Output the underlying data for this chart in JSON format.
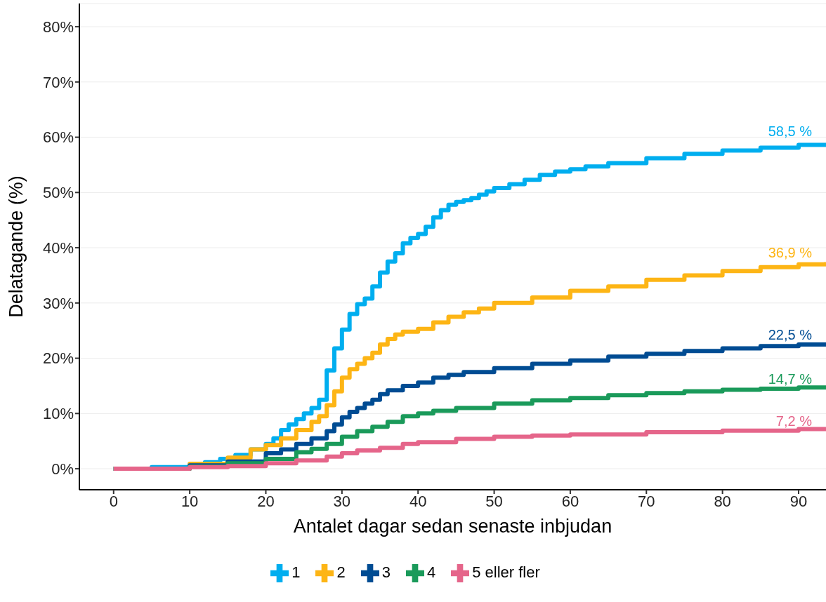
{
  "chart_data": {
    "type": "step",
    "xlabel": "Antalet dagar sedan senaste inbjudan",
    "ylabel": "Delatagande (%)",
    "xlim": [
      -4.5,
      93.6
    ],
    "xticks": [
      0,
      10,
      20,
      30,
      40,
      50,
      60,
      70,
      80,
      90
    ],
    "ylim": [
      -3.8,
      84.2
    ],
    "yticks": [
      {
        "value": 0,
        "label": "0%"
      },
      {
        "value": 10,
        "label": "10%"
      },
      {
        "value": 20,
        "label": "20%"
      },
      {
        "value": 30,
        "label": "30%"
      },
      {
        "value": 40,
        "label": "40%"
      },
      {
        "value": 50,
        "label": "50%"
      },
      {
        "value": 60,
        "label": "60%"
      },
      {
        "value": 70,
        "label": "70%"
      },
      {
        "value": 80,
        "label": "80%"
      }
    ],
    "grid": "y",
    "legend": "bottom",
    "line_style": "solid",
    "series": [
      {
        "name": "1",
        "color": "#00aeef",
        "x": [
          0,
          5,
          10,
          12,
          14,
          16,
          18,
          20,
          21,
          22,
          23,
          24,
          25,
          26,
          27,
          28,
          29,
          30,
          31,
          32,
          33,
          34,
          35,
          36,
          37,
          38,
          39,
          40,
          41,
          42,
          43,
          44,
          45,
          46,
          47,
          48,
          49,
          50,
          52,
          54,
          56,
          58,
          60,
          62,
          65,
          70,
          75,
          80,
          85,
          90,
          93.6
        ],
        "values": [
          0,
          0.3,
          0.8,
          1.2,
          1.8,
          2.5,
          3.5,
          4.5,
          5.5,
          7,
          8,
          9,
          10,
          11,
          12.5,
          17.8,
          21.8,
          25.2,
          28,
          29.8,
          30.8,
          33,
          35.5,
          37.5,
          39,
          40.8,
          41.8,
          42.5,
          43.8,
          45.5,
          46.8,
          47.8,
          48.3,
          48.6,
          49,
          49.6,
          50.2,
          50.8,
          51.5,
          52.3,
          53.2,
          53.8,
          54.2,
          54.7,
          55.3,
          56.2,
          57,
          57.6,
          58.1,
          58.6,
          59
        ]
      },
      {
        "name": "2",
        "color": "#fdb515",
        "x": [
          0,
          10,
          15,
          18,
          20,
          22,
          24,
          26,
          27,
          28,
          29,
          30,
          31,
          32,
          33,
          34,
          35,
          36,
          37,
          38,
          40,
          42,
          44,
          46,
          48,
          50,
          55,
          60,
          65,
          70,
          75,
          80,
          85,
          90,
          93.6
        ],
        "values": [
          0,
          0.9,
          2,
          3.5,
          4.3,
          5.5,
          7,
          8.5,
          9.5,
          11.5,
          14,
          16.5,
          18,
          19,
          20,
          21,
          22.5,
          23.5,
          24.3,
          24.8,
          25.3,
          26.5,
          27.5,
          28.3,
          29,
          30,
          31,
          32.2,
          33,
          34.2,
          35,
          35.8,
          36.5,
          37,
          37.4
        ]
      },
      {
        "name": "3",
        "color": "#004c93",
        "x": [
          0,
          10,
          15,
          20,
          22,
          24,
          26,
          28,
          29,
          30,
          31,
          32,
          33,
          34,
          35,
          36,
          38,
          40,
          42,
          44,
          46,
          50,
          55,
          60,
          65,
          70,
          75,
          80,
          85,
          90,
          93.6
        ],
        "values": [
          0,
          0.6,
          1.3,
          2.8,
          3.5,
          4.5,
          5.5,
          6.8,
          8,
          9.3,
          10.3,
          11,
          11.8,
          12.5,
          13.5,
          14.2,
          15,
          15.6,
          16.5,
          17,
          17.5,
          18.2,
          19,
          19.6,
          20.3,
          20.8,
          21.3,
          21.8,
          22.2,
          22.5,
          22.8
        ]
      },
      {
        "name": "4",
        "color": "#1a9a5a",
        "x": [
          0,
          10,
          15,
          20,
          24,
          26,
          28,
          30,
          32,
          34,
          36,
          38,
          40,
          42,
          45,
          50,
          55,
          60,
          65,
          70,
          75,
          80,
          85,
          90,
          93.6
        ],
        "values": [
          0,
          0.4,
          1,
          1.8,
          3,
          3.6,
          4.5,
          5.8,
          6.8,
          7.6,
          8.5,
          9.5,
          10,
          10.5,
          11,
          11.8,
          12.4,
          12.8,
          13.3,
          13.7,
          14,
          14.3,
          14.5,
          14.7,
          14.8
        ]
      },
      {
        "name": "5 eller fler",
        "color": "#e5658a",
        "x": [
          0,
          10,
          15,
          20,
          24,
          28,
          30,
          32,
          35,
          38,
          40,
          45,
          50,
          55,
          60,
          70,
          80,
          90,
          93.6
        ],
        "values": [
          0,
          0.3,
          0.5,
          1,
          1.5,
          2.2,
          2.8,
          3.3,
          3.8,
          4.5,
          4.8,
          5.4,
          5.8,
          6,
          6.2,
          6.6,
          6.9,
          7.2,
          7.3
        ]
      }
    ],
    "annotations": [
      "58,5 %",
      "36,9 %",
      "22,5 %",
      "14,7 %",
      "7,2 %"
    ]
  }
}
